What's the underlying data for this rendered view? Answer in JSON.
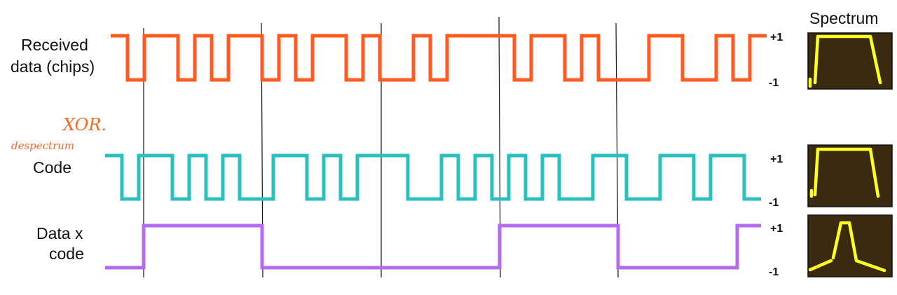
{
  "rows": {
    "received": {
      "label_line1": "Received",
      "label_line2": "data (chips)",
      "color": "#ff5a1f",
      "chips": [
        1,
        0,
        1,
        1,
        0,
        1,
        0,
        1,
        1,
        0,
        1,
        0,
        1,
        1,
        0,
        1,
        0,
        0,
        1,
        0,
        1,
        1,
        1,
        1,
        0,
        1,
        1,
        0,
        1,
        0,
        0,
        0,
        1,
        1,
        0,
        0,
        1,
        0,
        1
      ]
    },
    "code": {
      "label": "Code",
      "color": "#2bbfbf",
      "chips": [
        1,
        0,
        1,
        1,
        0,
        1,
        0,
        1,
        0,
        0,
        1,
        1,
        0,
        1,
        0,
        1,
        1,
        1,
        0,
        0,
        1,
        0,
        1,
        0,
        1,
        0,
        1,
        0,
        0,
        1,
        1,
        0,
        0,
        1,
        1,
        0,
        1,
        1,
        0
      ]
    },
    "product": {
      "label_line1": "Data x",
      "label_line2": "code",
      "color": "#b56cf2",
      "bits": [
        0,
        1,
        0,
        0,
        1,
        0,
        1
      ]
    }
  },
  "levels": {
    "high": "+1",
    "low": "-1"
  },
  "spectrum": {
    "title": "Spectrum"
  },
  "annotations": {
    "xor": "XOR.",
    "despread": "despectrum"
  }
}
